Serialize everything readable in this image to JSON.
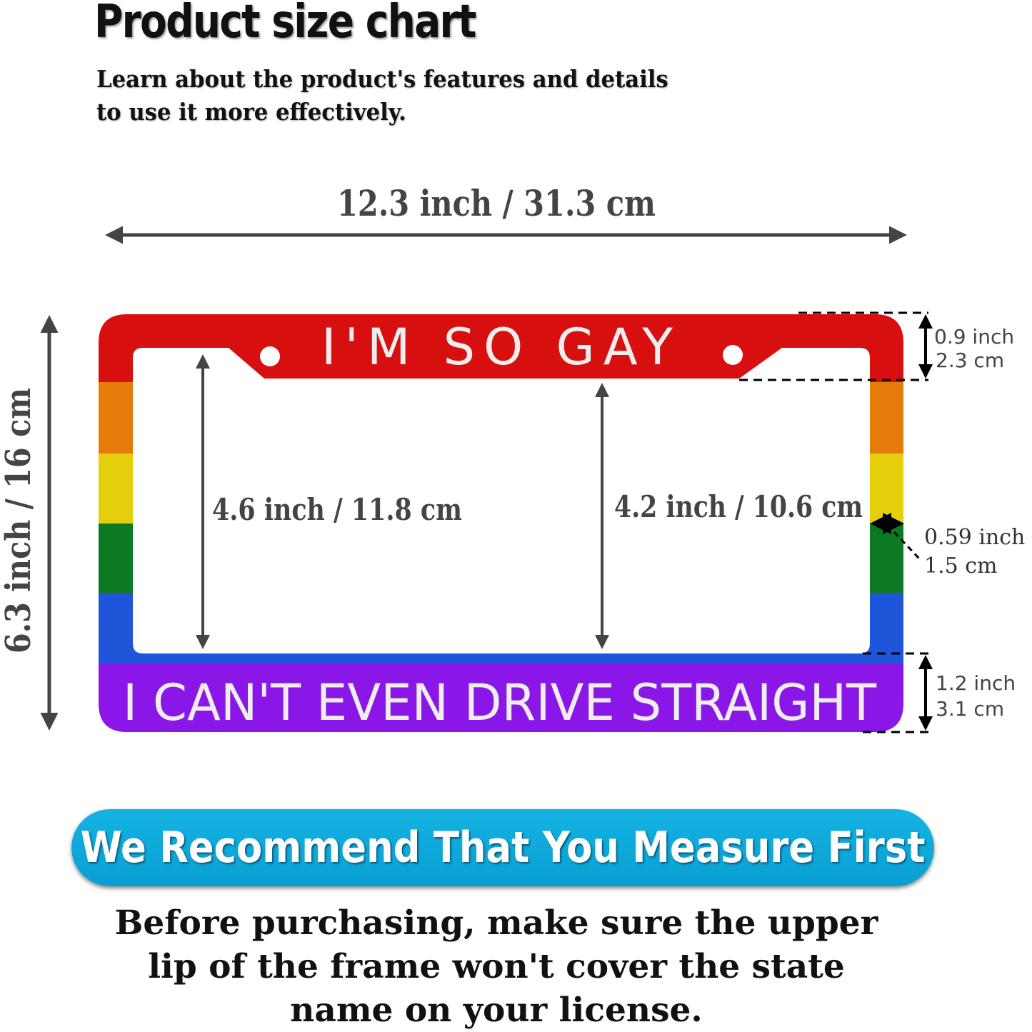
{
  "header": {
    "title": "Product size chart",
    "subtitle_line1": "Learn about the product's features and details",
    "subtitle_line2": "to use it more effectively."
  },
  "dimensions": {
    "width": "12.3 inch / 31.3 cm",
    "height": "6.3 inch / 16 cm",
    "opening_left": "4.6 inch / 11.8 cm",
    "opening_center": "4.2 inch / 10.6 cm",
    "top_bar_inch": "0.9 inch",
    "top_bar_cm": "2.3 cm",
    "side_inch": "0.59 inch",
    "side_cm": "1.5 cm",
    "bottom_bar_inch": "1.2 inch",
    "bottom_bar_cm": "3.1 cm"
  },
  "frame": {
    "top_text": "I'M SO GAY",
    "bottom_text": "I CAN'T EVEN DRIVE STRAIGHT",
    "stripe_colors": [
      "#d80f0f",
      "#e57c0a",
      "#e5cf0c",
      "#0c7a22",
      "#1f55d8",
      "#8a16e8"
    ]
  },
  "banner": {
    "text": "We Recommend That You Measure First",
    "color": "#14b3e2"
  },
  "note": {
    "line1": "Before purchasing, make sure the upper",
    "line2": "lip of the frame won't cover the state",
    "line3": "name on your license."
  }
}
